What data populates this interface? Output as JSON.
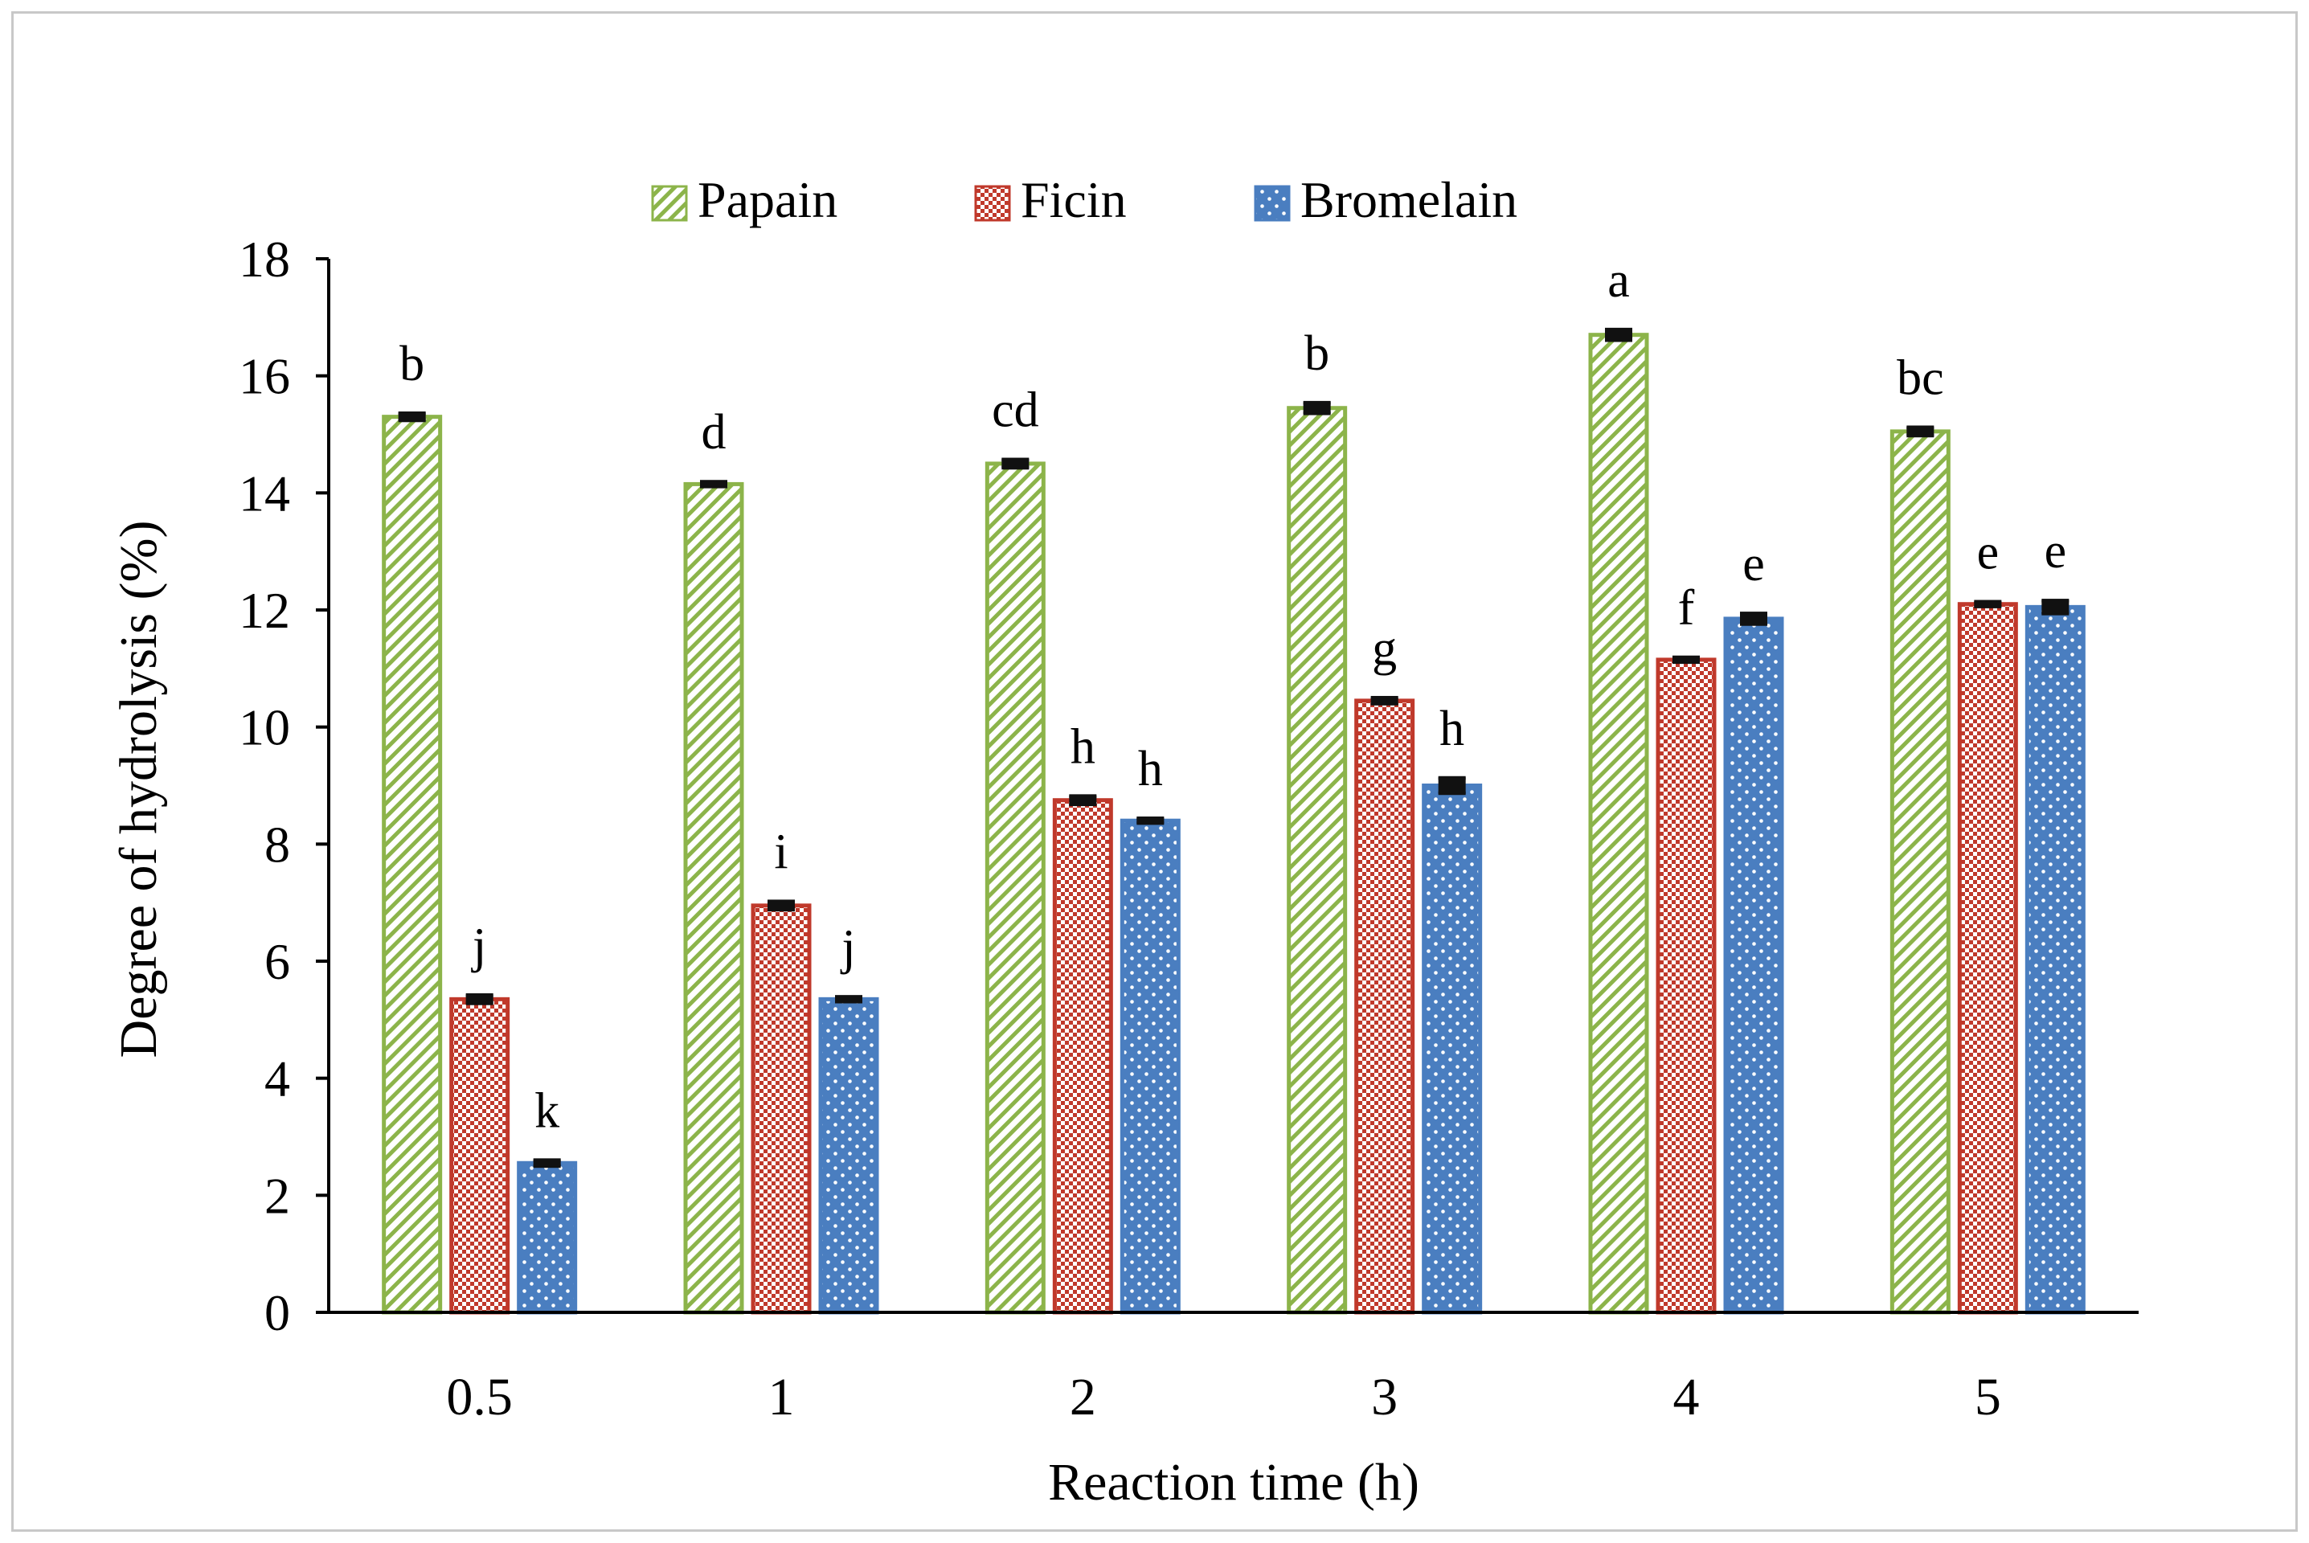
{
  "chart_data": {
    "type": "bar",
    "title": "",
    "xlabel": "Reaction time (h)",
    "ylabel": "Degree of hydrolysis (%)",
    "ylim": [
      0,
      18
    ],
    "yticks": [
      "0",
      "2",
      "4",
      "6",
      "8",
      "10",
      "12",
      "14",
      "16",
      "18"
    ],
    "grid": false,
    "legend_position": "top-center",
    "categories": [
      "0.5",
      "1",
      "2",
      "3",
      "4",
      "5"
    ],
    "series": [
      {
        "name": "Papain",
        "color": "#8cb44a",
        "pattern": "diagonal-hatch",
        "values": [
          15.3,
          14.15,
          14.5,
          15.45,
          16.7,
          15.05
        ],
        "errors": [
          0.05,
          0.03,
          0.06,
          0.08,
          0.08,
          0.06
        ],
        "letters": [
          "b",
          "d",
          "cd",
          "b",
          "a",
          "bc"
        ]
      },
      {
        "name": "Ficin",
        "color": "#c0392b",
        "pattern": "checker",
        "values": [
          5.35,
          6.95,
          8.75,
          10.45,
          11.15,
          12.1
        ],
        "errors": [
          0.06,
          0.06,
          0.06,
          0.04,
          0.03,
          0.03
        ],
        "letters": [
          "j",
          "i",
          "h",
          "g",
          "f",
          "e"
        ]
      },
      {
        "name": "Bromelain",
        "color": "#4a7ec0",
        "pattern": "dots",
        "values": [
          2.55,
          5.35,
          8.4,
          9.0,
          11.85,
          12.05
        ],
        "errors": [
          0.04,
          0.03,
          0.03,
          0.12,
          0.08,
          0.1
        ],
        "letters": [
          "k",
          "j",
          "h",
          "h",
          "e",
          "e"
        ]
      }
    ]
  }
}
